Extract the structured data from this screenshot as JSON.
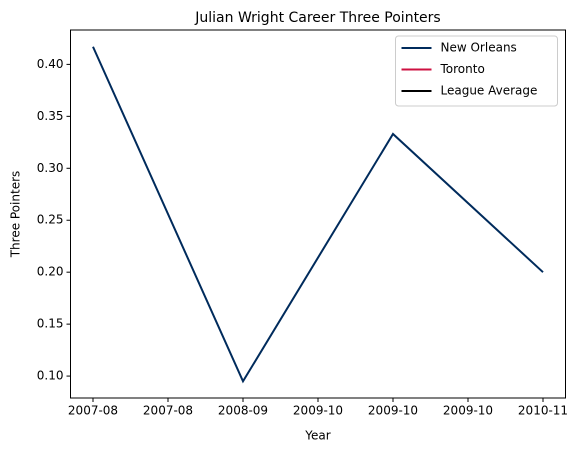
{
  "chart_data": {
    "type": "line",
    "title": "Julian Wright Career Three Pointers",
    "xlabel": "Year",
    "ylabel": "Three Pointers",
    "x": [
      0,
      1,
      2,
      3
    ],
    "series": [
      {
        "name": "New Orleans",
        "color": "#002B5C",
        "values": [
          0.417,
          0.095,
          0.333,
          0.2
        ]
      },
      {
        "name": "Toronto",
        "color": "#CE1141",
        "values": [
          null,
          null,
          null,
          null
        ]
      },
      {
        "name": "League Average",
        "color": "#000000",
        "values": [
          null,
          null,
          null,
          null
        ]
      }
    ],
    "xlim": [
      -0.15,
      3.15
    ],
    "xticks": [
      {
        "value": 0,
        "label": "2007-08"
      },
      {
        "value": 0.5,
        "label": "2007-08"
      },
      {
        "value": 1,
        "label": "2008-09"
      },
      {
        "value": 1.5,
        "label": "2009-10"
      },
      {
        "value": 2,
        "label": "2009-10"
      },
      {
        "value": 2.5,
        "label": "2009-10"
      },
      {
        "value": 3,
        "label": "2010-11"
      }
    ],
    "ylim": [
      0.0789,
      0.4331
    ],
    "yticks": [
      {
        "value": 0.1,
        "label": "0.10"
      },
      0.15,
      {
        "value": 0.2,
        "label": "0.20"
      },
      0.25,
      {
        "value": 0.3,
        "label": "0.30"
      },
      0.35,
      {
        "value": 0.4,
        "label": "0.40"
      }
    ],
    "legend": "upper right"
  }
}
